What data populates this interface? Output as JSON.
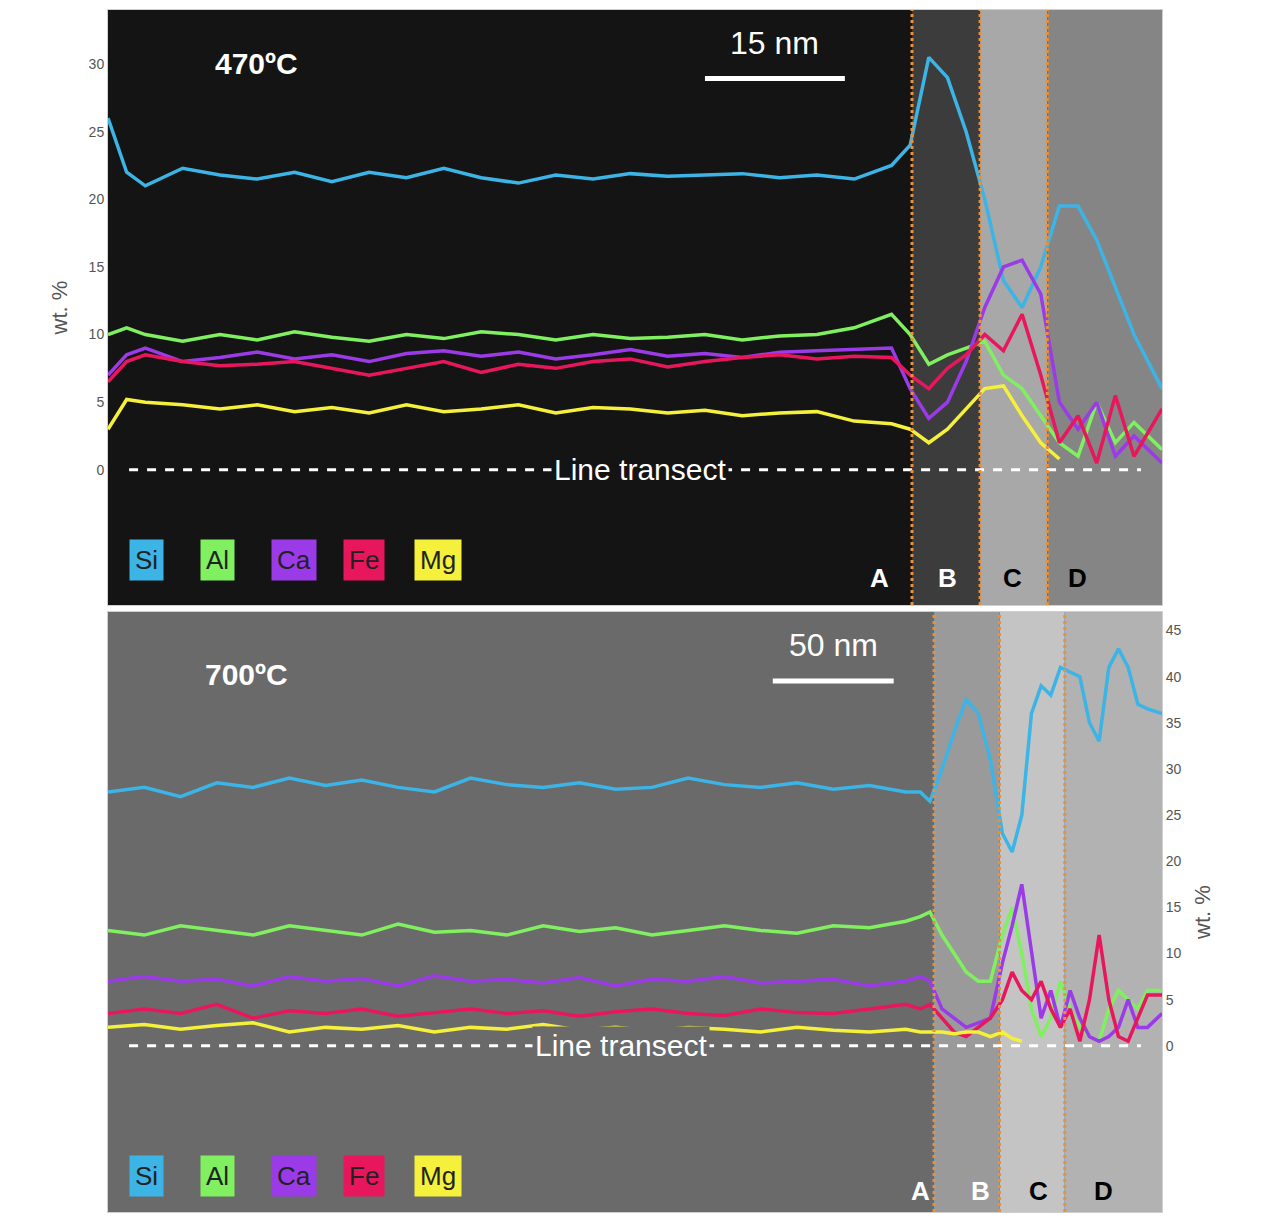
{
  "chart_data": [
    {
      "type": "line",
      "title": "470ºC",
      "y_label": "wt. %",
      "xlim": [
        0,
        113
      ],
      "ylim": [
        -10,
        34
      ],
      "yticks": [
        0,
        5,
        10,
        15,
        20,
        25,
        30
      ],
      "tick_labels": "y",
      "legend": "bottom left",
      "x": [
        0,
        2,
        4,
        8,
        12,
        16,
        20,
        24,
        28,
        32,
        36,
        40,
        44,
        48,
        52,
        56,
        60,
        64,
        68,
        72,
        76,
        80,
        84,
        86,
        88,
        90,
        92,
        94,
        96,
        98,
        100,
        102,
        104,
        106,
        108,
        110,
        113
      ],
      "series": [
        {
          "name": "Si",
          "color": "#3cb4e6",
          "values": [
            26,
            22,
            21,
            22.3,
            21.8,
            21.5,
            22,
            21.3,
            22,
            21.6,
            22.3,
            21.6,
            21.2,
            21.8,
            21.5,
            21.9,
            21.7,
            21.8,
            21.9,
            21.6,
            21.8,
            21.5,
            22.5,
            24,
            30.5,
            29,
            25,
            20,
            14,
            12,
            15,
            19.5,
            19.5,
            17,
            13.5,
            10,
            6
          ]
        },
        {
          "name": "Al",
          "color": "#80f060",
          "values": [
            10,
            10.5,
            10,
            9.5,
            10,
            9.6,
            10.2,
            9.8,
            9.5,
            10,
            9.7,
            10.2,
            10,
            9.6,
            10,
            9.7,
            9.8,
            10,
            9.6,
            9.9,
            10,
            10.5,
            11.5,
            10,
            7.8,
            8.5,
            9,
            9.5,
            7,
            6,
            4,
            2,
            1,
            5,
            2,
            3.5,
            1.5
          ]
        },
        {
          "name": "Ca",
          "color": "#9b3be8",
          "values": [
            7,
            8.5,
            9,
            8,
            8.3,
            8.7,
            8.2,
            8.5,
            8,
            8.6,
            8.8,
            8.4,
            8.7,
            8.2,
            8.5,
            8.9,
            8.4,
            8.6,
            8.3,
            8.7,
            8.8,
            8.9,
            9,
            6,
            3.8,
            5,
            8,
            12,
            15,
            15.5,
            13,
            5,
            3,
            5,
            1,
            2.5,
            0.5
          ]
        },
        {
          "name": "Fe",
          "color": "#e8175d",
          "values": [
            6.5,
            8,
            8.5,
            8,
            7.7,
            7.8,
            8,
            7.5,
            7,
            7.5,
            8,
            7.2,
            7.8,
            7.5,
            8,
            8.2,
            7.6,
            8,
            8.3,
            8.5,
            8.2,
            8.4,
            8.3,
            7,
            6,
            7.5,
            8.5,
            10,
            8.8,
            11.5,
            7,
            2,
            4,
            0.5,
            5.5,
            1,
            4.5
          ]
        },
        {
          "name": "Mg",
          "color": "#f5f03c",
          "values": [
            3,
            5.2,
            5,
            4.8,
            4.5,
            4.8,
            4.3,
            4.6,
            4.2,
            4.8,
            4.3,
            4.5,
            4.8,
            4.2,
            4.6,
            4.5,
            4.2,
            4.4,
            4,
            4.2,
            4.3,
            3.6,
            3.4,
            3,
            2,
            3,
            4.5,
            6,
            6.2,
            4,
            2,
            0.8,
            null,
            null,
            null,
            null,
            null
          ]
        }
      ],
      "zone_boundaries": [
        86.2,
        93.5,
        100.7
      ],
      "zone_labels": [
        {
          "text": "A",
          "x": 82.7
        },
        {
          "text": "B",
          "x": 90
        },
        {
          "text": "C",
          "x": 97
        },
        {
          "text": "D",
          "x": 103.9
        }
      ],
      "scale_bar": {
        "label": "15 nm",
        "x0": 64,
        "x1": 79
      },
      "line_transect": {
        "label": "Line transect",
        "y": 0
      }
    },
    {
      "type": "line",
      "title": "700ºC",
      "y_label": "wt. %",
      "xlim": [
        0,
        436
      ],
      "ylim": [
        -18,
        47
      ],
      "yticks": [
        0,
        5,
        10,
        15,
        20,
        25,
        30,
        35,
        40,
        45
      ],
      "tick_labels": "y",
      "legend": "bottom left",
      "x": [
        0,
        15,
        30,
        45,
        60,
        75,
        90,
        105,
        120,
        135,
        150,
        165,
        180,
        195,
        210,
        225,
        240,
        255,
        270,
        285,
        300,
        315,
        330,
        336,
        340,
        345,
        350,
        355,
        360,
        365,
        370,
        374,
        378,
        382,
        386,
        390,
        394,
        398,
        402,
        406,
        410,
        414,
        418,
        422,
        426,
        430,
        436
      ],
      "series": [
        {
          "name": "Si",
          "color": "#3cb4e6",
          "values": [
            27.5,
            28,
            27,
            28.5,
            28,
            29,
            28.2,
            28.8,
            28,
            27.5,
            29,
            28.3,
            28,
            28.5,
            27.8,
            28,
            29,
            28.3,
            28,
            28.5,
            27.8,
            28.2,
            27.5,
            27.5,
            26.5,
            30,
            34,
            37.5,
            36,
            31,
            23,
            21,
            25,
            36,
            39,
            38,
            41,
            40.5,
            40,
            35,
            33,
            41,
            43,
            41,
            37,
            36.5,
            36
          ]
        },
        {
          "name": "Al",
          "color": "#80f060",
          "values": [
            12.5,
            12,
            13,
            12.5,
            12,
            13,
            12.5,
            12,
            13.2,
            12.3,
            12.5,
            12,
            13,
            12.4,
            12.8,
            12,
            12.5,
            13,
            12.5,
            12.2,
            13,
            12.8,
            13.5,
            14,
            14.5,
            12,
            10,
            8,
            7,
            7,
            12,
            15,
            10,
            4,
            1,
            3,
            7,
            4,
            2,
            1,
            0.5,
            4,
            6,
            5,
            4,
            6,
            6
          ]
        },
        {
          "name": "Ca",
          "color": "#9b3be8",
          "values": [
            7,
            7.5,
            7,
            7.2,
            6.5,
            7.5,
            7,
            7.3,
            6.5,
            7.6,
            7,
            7.2,
            6.8,
            7.4,
            6.5,
            7.2,
            7,
            7.5,
            6.8,
            7,
            7.2,
            6.5,
            7,
            7.5,
            7,
            4,
            3,
            2,
            2.5,
            3,
            9,
            13,
            17.5,
            10,
            3,
            6,
            2,
            6,
            3,
            1,
            0.5,
            1,
            2,
            5,
            2,
            2,
            3.5
          ]
        },
        {
          "name": "Fe",
          "color": "#e8175d",
          "values": [
            3.5,
            4,
            3.5,
            4.5,
            3,
            3.8,
            3.5,
            4,
            3.2,
            3.6,
            4,
            3.5,
            3.8,
            3.2,
            3.7,
            4,
            3.5,
            3.3,
            4,
            3.6,
            3.5,
            4,
            4.5,
            4,
            4.5,
            3,
            1.5,
            1,
            2,
            3,
            5,
            8,
            6,
            5,
            7,
            4,
            2,
            4,
            0.5,
            5,
            12,
            5,
            1,
            0.5,
            3,
            5.5,
            5.5
          ]
        },
        {
          "name": "Mg",
          "color": "#f5f03c",
          "values": [
            2,
            2.3,
            1.8,
            2.2,
            2.5,
            1.5,
            2,
            1.8,
            2.2,
            1.5,
            2,
            1.8,
            2.3,
            1.7,
            2,
            1.6,
            2,
            1.8,
            1.5,
            2,
            1.7,
            1.5,
            1.8,
            1.5,
            1.5,
            1.5,
            1.3,
            1.5,
            1.5,
            1,
            1.5,
            0.8,
            0.5,
            null,
            null,
            null,
            null,
            null,
            null,
            null,
            null,
            null,
            null,
            null,
            null,
            null,
            null
          ]
        }
      ],
      "zone_boundaries": [
        341.7,
        368.8,
        395.8
      ],
      "zone_labels": [
        {
          "text": "A",
          "x": 336
        },
        {
          "text": "B",
          "x": 361
        },
        {
          "text": "C",
          "x": 385
        },
        {
          "text": "D",
          "x": 412
        }
      ],
      "scale_bar": {
        "label": "50 nm",
        "x0": 275,
        "x1": 325
      },
      "line_transect": {
        "label": "Line transect",
        "y": 0
      }
    }
  ]
}
